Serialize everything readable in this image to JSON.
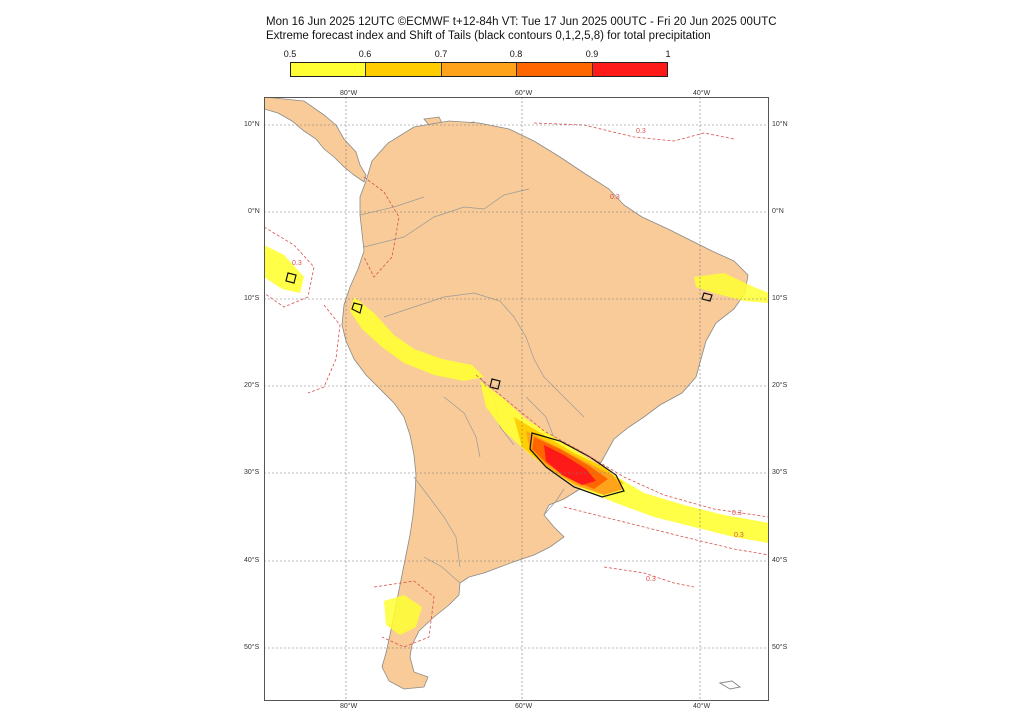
{
  "header": {
    "line1": "Mon 16 Jun 2025 12UTC ©ECMWF t+12-84h  VT: Tue 17 Jun 2025 00UTC - Fri 20 Jun 2025 00UTC",
    "line2": "Extreme forecast index and Shift of Tails (black contours 0,1,2,5,8) for total precipitation"
  },
  "colorbar": {
    "labels": [
      "0.5",
      "0.6",
      "0.7",
      "0.8",
      "0.9",
      "1"
    ],
    "colors": [
      "#ffff33",
      "#ffcc00",
      "#ffa31a",
      "#ff6600",
      "#ff1a1a"
    ]
  },
  "axes": {
    "lon_top": [
      "80°W",
      "60°W",
      "40°W"
    ],
    "lon_bottom": [
      "80°W",
      "60°W",
      "40°W"
    ],
    "lat_left": [
      "10°N",
      "0°N",
      "10°S",
      "20°S",
      "30°S",
      "40°S",
      "50°S"
    ],
    "lat_right": [
      "10°N",
      "0°N",
      "10°S",
      "20°S",
      "30°S",
      "40°S",
      "50°S"
    ]
  },
  "contour_labels": [
    "0.3",
    "0.3",
    "0.3",
    "0.3",
    "0.3",
    "0.3"
  ],
  "map_colors": {
    "land": "#f8cb98",
    "ocean": "#ffffff",
    "border": "#8a8a8a",
    "contour": "#d9534f",
    "sot": "#111111"
  }
}
